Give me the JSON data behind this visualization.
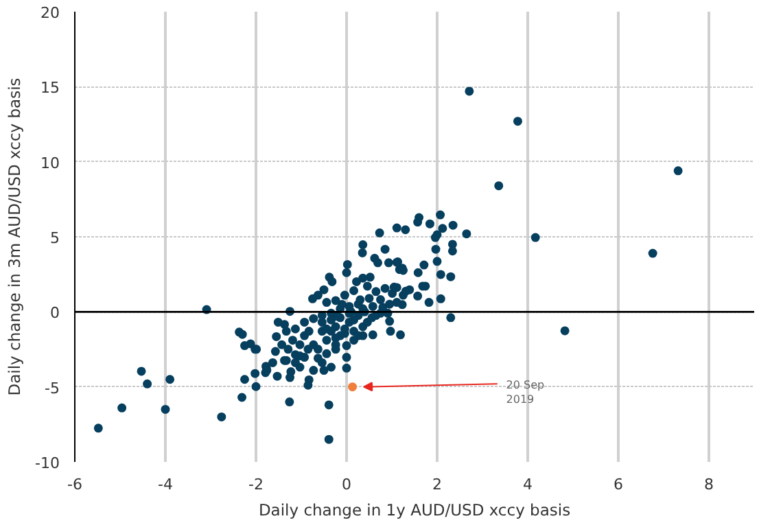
{
  "chart_data": {
    "type": "scatter",
    "xlabel": "Daily change in 1y AUD/USD xccy basis",
    "ylabel": "Daily change in 3m AUD/USD xccy basis",
    "xlim": [
      -6,
      9
    ],
    "ylim": [
      -10,
      20
    ],
    "xticks": [
      -6,
      -4,
      -2,
      0,
      2,
      4,
      6,
      8
    ],
    "yticks": [
      -10,
      -5,
      0,
      5,
      10,
      15,
      20
    ],
    "grid": true,
    "marker": "circle",
    "ref_lines": [
      {
        "axis": "y",
        "value": 0,
        "color": "#000000"
      }
    ],
    "annotations": [
      {
        "text": "20 Sep 2019",
        "x": 0.13,
        "y": -5.0
      }
    ],
    "series": [
      {
        "color": "#073f5e",
        "x": [
          2.71,
          3.78,
          3.36,
          4.17,
          7.32,
          6.76,
          4.82,
          -3.09,
          -5.48,
          -4.96,
          -4.0,
          -2.76,
          -2.31,
          -1.26,
          -0.39,
          -0.39,
          -4.53,
          -4.4,
          -3.9,
          2.07,
          1.6,
          1.57,
          1.84,
          2.35,
          2.12,
          2.65,
          2.0,
          1.96,
          1.11,
          1.3,
          0.73,
          0.36,
          0.85,
          0.35,
          0.62,
          0.69,
          0.93,
          1.13,
          1.17,
          1.23,
          1.58,
          1.97,
          2.34,
          2.34,
          2.0,
          2.08,
          2.3,
          1.74,
          1.68,
          1.82,
          2.08,
          1.57,
          1.25,
          1.01,
          0.85,
          1.05,
          0.52,
          0.36,
          0.22,
          0.02,
          0.0,
          -0.38,
          -0.32,
          -0.5,
          -0.75,
          -0.63,
          -0.44,
          -0.24,
          -0.04,
          0.16,
          0.46,
          0.65,
          0.75,
          0.95,
          0.91,
          0.58,
          0.36,
          0.26,
          0.06,
          -0.14,
          -0.34,
          -0.54,
          -0.73,
          -0.93,
          -1.13,
          -1.25,
          -1.51,
          -1.55,
          -1.33,
          -1.19,
          -1.29,
          -1.13,
          -1.03,
          -0.93,
          -0.83,
          -0.73,
          -0.63,
          -0.54,
          -0.44,
          -0.34,
          -0.24,
          -0.14,
          -0.04,
          0.06,
          0.16,
          0.26,
          0.36,
          0.46,
          0.56,
          0.65,
          0.75,
          0.95,
          0.58,
          0.97,
          1.19,
          2.3,
          0.0,
          0.0,
          0.0,
          -0.83,
          -0.85,
          -0.5,
          -0.73,
          -1.03,
          -1.23,
          -1.53,
          -1.77,
          -1.79,
          -2.02,
          -2.02,
          -1.37,
          -1.57,
          -0.93,
          -1.13,
          -0.85,
          -0.63,
          -0.44,
          -0.24,
          -0.54,
          -0.34,
          -1.03,
          -1.43,
          -1.63,
          -0.54,
          -0.34,
          -0.14,
          0.06,
          0.26,
          -0.24,
          0.16,
          -0.44,
          -0.04,
          0.16,
          0.36,
          -0.24,
          -1.37,
          -2.37,
          -2.3,
          -2.25,
          -2.12,
          -1.99,
          -1.78,
          -1.76,
          -2.25,
          -2.0,
          -1.33,
          -1.25,
          1.71,
          1.11,
          1.25,
          1.11,
          1.39,
          1.31,
          1.23,
          1.11,
          0.8,
          0.5,
          0.3,
          -0.1,
          0.1,
          -0.2,
          0.4
        ],
        "values": [
          14.7,
          12.7,
          8.4,
          4.95,
          9.4,
          3.9,
          -1.26,
          0.15,
          -7.75,
          -6.4,
          -6.5,
          -7.0,
          -5.7,
          -6.0,
          -6.2,
          -8.5,
          -3.96,
          -4.8,
          -4.5,
          6.46,
          6.28,
          5.98,
          5.86,
          5.77,
          5.56,
          5.2,
          5.14,
          4.95,
          5.59,
          5.47,
          5.26,
          4.47,
          4.17,
          3.93,
          3.57,
          3.27,
          3.27,
          3.33,
          2.82,
          2.91,
          2.61,
          4.17,
          4.5,
          4.05,
          3.36,
          2.49,
          2.34,
          1.71,
          1.71,
          0.63,
          0.87,
          1.05,
          1.11,
          1.23,
          1.56,
          1.65,
          2.31,
          2.25,
          2.01,
          3.15,
          2.61,
          2.31,
          2.01,
          1.47,
          0.87,
          1.11,
          0.63,
          0.75,
          1.11,
          1.41,
          1.71,
          1.35,
          0.81,
          0.51,
          -0.09,
          0.36,
          0.21,
          0.51,
          0.36,
          0.21,
          -0.09,
          -0.24,
          -0.45,
          -0.69,
          -1.14,
          0.03,
          -0.69,
          -1.65,
          -1.29,
          -1.89,
          -2.49,
          -2.85,
          -2.19,
          -1.59,
          -1.29,
          -2.19,
          -3.09,
          -1.29,
          -1.89,
          -1.29,
          -2.19,
          -1.59,
          -1.14,
          -0.69,
          -1.29,
          -1.59,
          -0.99,
          -0.69,
          -0.39,
          -0.24,
          -0.09,
          -0.63,
          -1.53,
          -1.29,
          -1.53,
          -0.39,
          -2.25,
          -3.03,
          -3.75,
          -4.53,
          -4.89,
          -3.9,
          -3.9,
          -3.69,
          -3.99,
          -4.29,
          -3.75,
          -4.05,
          -4.11,
          -2.49,
          -3.24,
          -2.64,
          -3.03,
          -3.39,
          -2.49,
          -2.49,
          -2.79,
          -2.49,
          -3.39,
          -3.69,
          -2.94,
          -2.19,
          -3.39,
          -0.69,
          -0.54,
          -0.39,
          -0.09,
          -0.24,
          -0.99,
          -0.54,
          -1.14,
          -1.44,
          -1.89,
          -1.59,
          -1.74,
          -0.84,
          -1.35,
          -1.5,
          -2.25,
          -2.13,
          -2.49,
          -3.63,
          -3.9,
          -4.5,
          -4.98,
          -3.24,
          -4.38,
          3.12,
          3.3,
          2.76,
          1.62,
          1.47,
          1.38,
          0.48,
          0.63,
          0.3,
          0.9,
          0.8,
          0.5,
          0.0,
          -0.3,
          0.0
        ]
      },
      {
        "color": "#f07f3c",
        "x": [
          0.13
        ],
        "values": [
          -5.0
        ]
      }
    ]
  }
}
